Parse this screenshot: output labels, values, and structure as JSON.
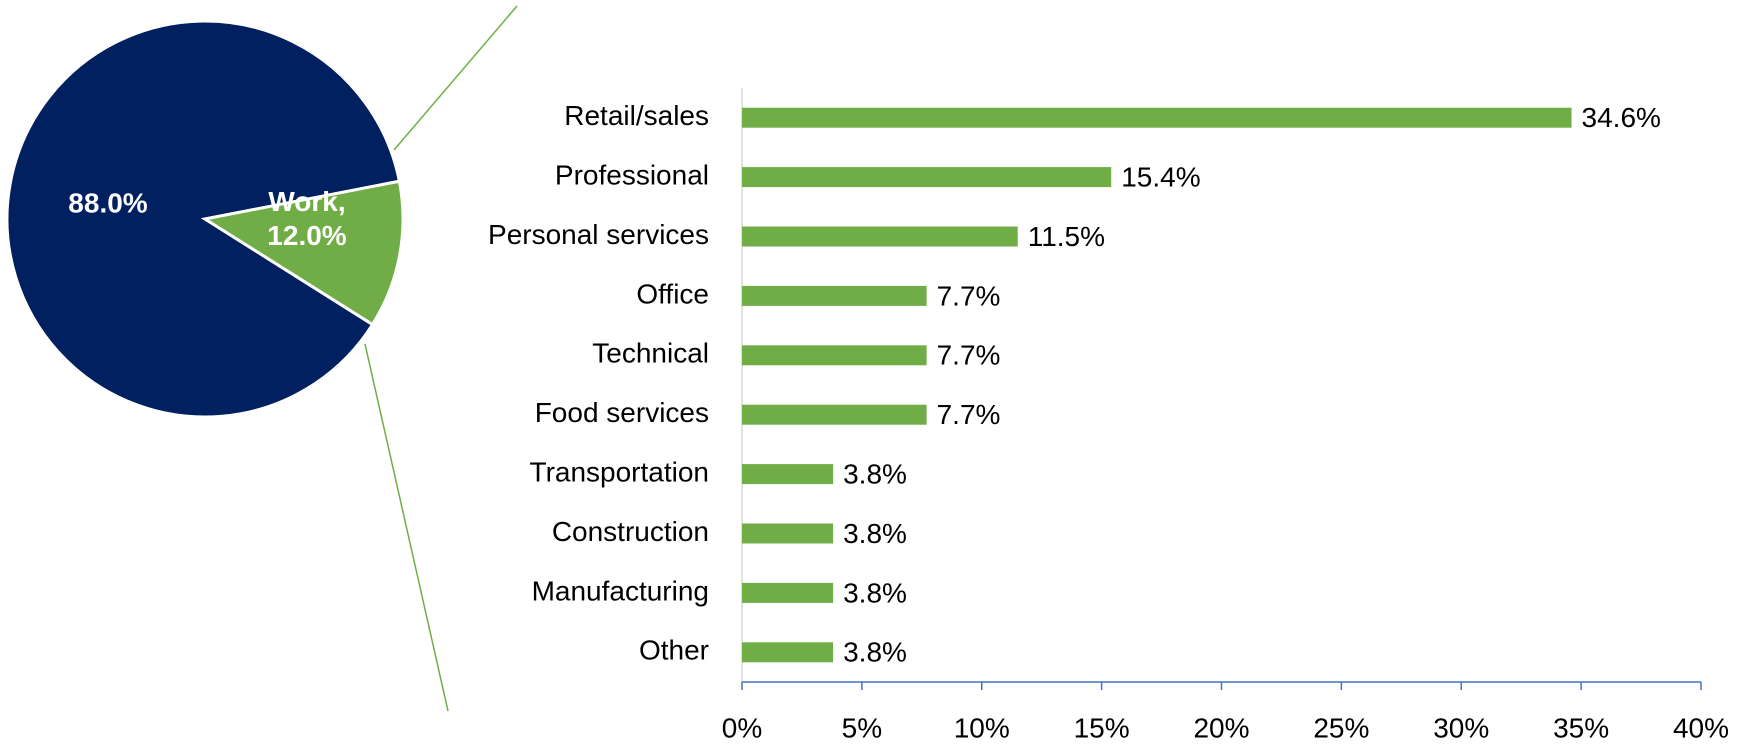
{
  "chart_data": [
    {
      "type": "pie",
      "categories": [
        null,
        "Work"
      ],
      "values": [
        88.0,
        12.0
      ],
      "value_labels": [
        "88.0%",
        "Work, 12.0%"
      ],
      "colors": [
        "#002060",
        "#70ad47"
      ]
    },
    {
      "type": "bar",
      "orientation": "horizontal",
      "categories": [
        "Retail/sales",
        "Professional",
        "Personal services",
        "Office",
        "Technical",
        "Food services",
        "Transportation",
        "Construction",
        "Manufacturing",
        "Other"
      ],
      "values": [
        34.6,
        15.4,
        11.5,
        7.7,
        7.7,
        7.7,
        3.8,
        3.8,
        3.8,
        3.8
      ],
      "value_labels": [
        "34.6%",
        "15.4%",
        "11.5%",
        "7.7%",
        "7.7%",
        "7.7%",
        "3.8%",
        "3.8%",
        "3.8%",
        "3.8%"
      ],
      "color": "#70ad47",
      "xlim": [
        0,
        40
      ],
      "xticks": [
        {
          "value": 0,
          "label": "0%"
        },
        {
          "value": 5,
          "label": "5%"
        },
        {
          "value": 10,
          "label": "10%"
        },
        {
          "value": 15,
          "label": "15%"
        },
        {
          "value": 20,
          "label": "20%"
        },
        {
          "value": 25,
          "label": "25%"
        },
        {
          "value": 30,
          "label": "30%"
        },
        {
          "value": 35,
          "label": "35%"
        },
        {
          "value": 40,
          "label": "40%"
        }
      ],
      "grid": false
    }
  ]
}
